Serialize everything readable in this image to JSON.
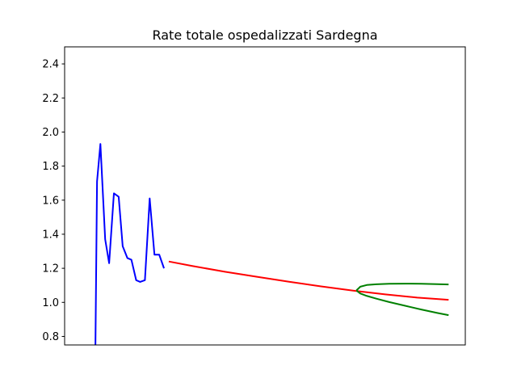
{
  "chart_data": {
    "type": "line",
    "title": "Rate totale ospedalizzati Sardegna",
    "xlabel": "",
    "ylabel": "",
    "xlim": [
      0,
      100
    ],
    "ylim": [
      0.75,
      2.5
    ],
    "yticks": [
      0.8,
      1.0,
      1.2,
      1.4,
      1.6,
      1.8,
      2.0,
      2.2,
      2.4
    ],
    "ytick_labels": [
      "0.8",
      "1.0",
      "1.2",
      "1.4",
      "1.6",
      "1.8",
      "2.0",
      "2.2",
      "2.4"
    ],
    "xticks_visible": false,
    "grid": false,
    "series": [
      {
        "color": "#0000ff",
        "x": [
          7.69,
          8.09,
          8.93,
          10.12,
          11.11,
          12.3,
          13.49,
          14.49,
          15.67,
          16.67,
          17.86,
          18.85,
          20.04,
          21.23,
          22.42,
          23.61,
          24.8
        ],
        "y": [
          0.75,
          1.71,
          1.93,
          1.37,
          1.23,
          1.64,
          1.62,
          1.33,
          1.26,
          1.25,
          1.13,
          1.12,
          1.13,
          1.61,
          1.28,
          1.28,
          1.2
        ]
      },
      {
        "color": "#ff0000",
        "x": [
          25.99,
          32,
          40,
          48,
          56,
          64,
          72,
          80,
          88,
          95.83
        ],
        "y": [
          1.24,
          1.213,
          1.18,
          1.15,
          1.121,
          1.094,
          1.069,
          1.047,
          1.028,
          1.015
        ]
      },
      {
        "color": "#008000",
        "x": [
          72.82,
          73.8,
          75.4,
          77.8,
          81,
          85,
          89,
          93,
          95.83
        ],
        "y": [
          1.07,
          1.092,
          1.102,
          1.106,
          1.109,
          1.11,
          1.109,
          1.107,
          1.105
        ]
      },
      {
        "color": "#008000",
        "x": [
          72.82,
          73.8,
          75.4,
          77.8,
          81,
          85,
          89,
          93,
          95.83
        ],
        "y": [
          1.07,
          1.052,
          1.038,
          1.022,
          1.002,
          0.98,
          0.958,
          0.938,
          0.925
        ]
      }
    ]
  }
}
